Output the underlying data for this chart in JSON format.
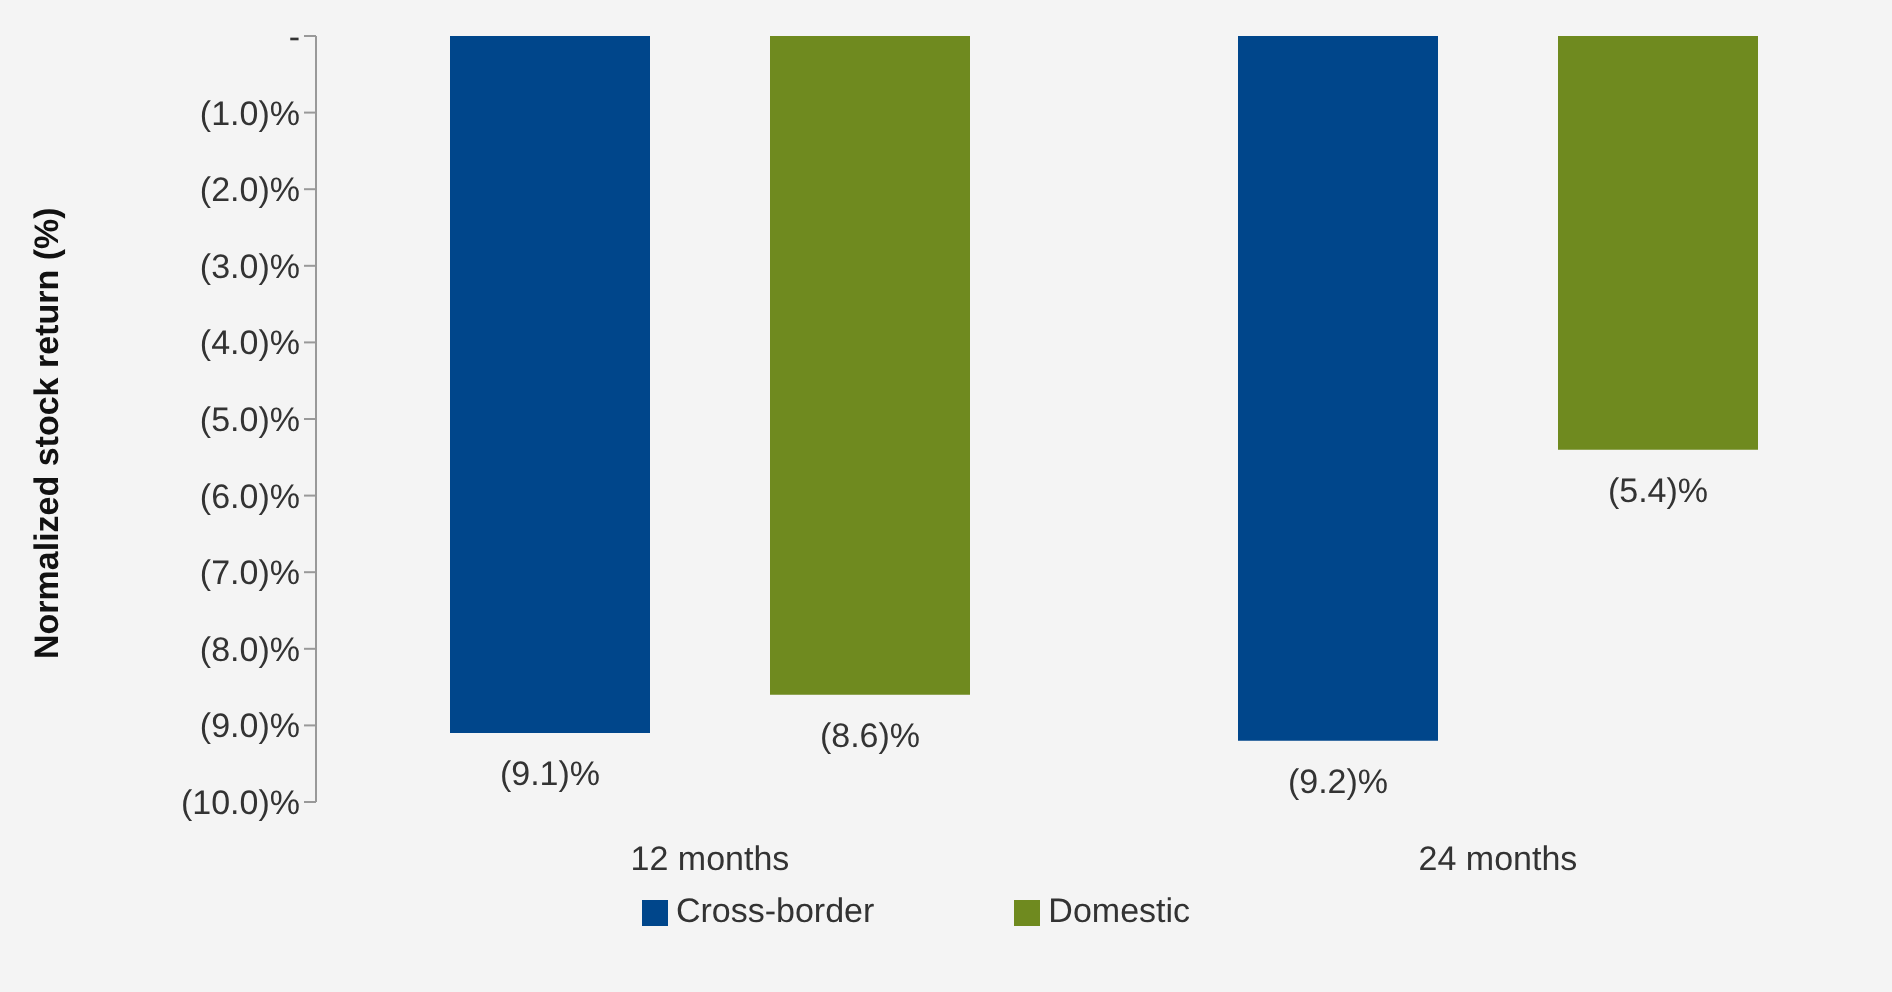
{
  "chart_data": {
    "type": "bar",
    "ylabel": "Normalized stock return (%)",
    "categories": [
      "12 months",
      "24 months"
    ],
    "series": [
      {
        "name": "Cross-border",
        "color": "#00468b",
        "values": [
          -9.1,
          -9.2
        ],
        "value_labels": [
          "(9.1)%",
          "(9.2)%"
        ]
      },
      {
        "name": "Domestic",
        "color": "#6f8a1f",
        "values": [
          -8.6,
          -5.4
        ],
        "value_labels": [
          "(8.6)%",
          "(5.4)%"
        ]
      }
    ],
    "ylim": [
      -10,
      0
    ],
    "yticks": [
      {
        "value": 0,
        "label": "-"
      },
      {
        "value": -1,
        "label": "(1.0)%"
      },
      {
        "value": -2,
        "label": "(2.0)%"
      },
      {
        "value": -3,
        "label": "(3.0)%"
      },
      {
        "value": -4,
        "label": "(4.0)%"
      },
      {
        "value": -5,
        "label": "(5.0)%"
      },
      {
        "value": -6,
        "label": "(6.0)%"
      },
      {
        "value": -7,
        "label": "(7.0)%"
      },
      {
        "value": -8,
        "label": "(8.0)%"
      },
      {
        "value": -9,
        "label": "(9.0)%"
      },
      {
        "value": -10,
        "label": "(10.0)%"
      }
    ],
    "grid": false,
    "legend": "bottom"
  }
}
